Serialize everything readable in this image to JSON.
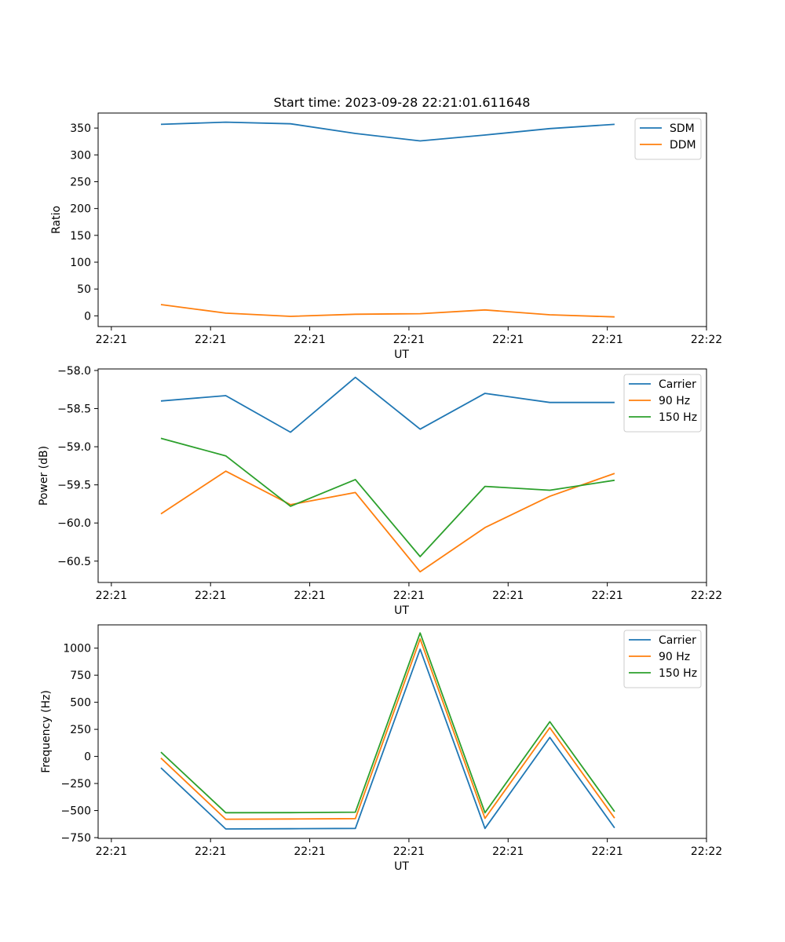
{
  "figure": {
    "title": "Start time: 2023-09-28 22:21:01.611648"
  },
  "chart_data": [
    {
      "type": "line",
      "name": "ratio",
      "title": "Start time: 2023-09-28 22:21:01.611648",
      "xlabel": "UT",
      "ylabel": "Ratio",
      "xlim": [
        -0.2,
        9.0
      ],
      "ylim": [
        -20,
        378
      ],
      "x_ticks": [
        0,
        1.5,
        3,
        4.5,
        6,
        7.5,
        9
      ],
      "x_tick_labels": [
        "22:21",
        "22:21",
        "22:21",
        "22:21",
        "22:21",
        "22:21",
        "22:22"
      ],
      "y_ticks": [
        0,
        50,
        100,
        150,
        200,
        250,
        300,
        350
      ],
      "y_tick_labels": [
        "0",
        "50",
        "100",
        "150",
        "200",
        "250",
        "300",
        "350"
      ],
      "legend_position": "upper-right",
      "x": [
        0.75,
        1.73,
        2.71,
        3.69,
        4.67,
        5.65,
        6.63,
        7.61
      ],
      "series": [
        {
          "name": "SDM",
          "color": "#1f77b4",
          "values": [
            357,
            361,
            358,
            340,
            326,
            337,
            349,
            357
          ]
        },
        {
          "name": "DDM",
          "color": "#ff7f0e",
          "values": [
            21,
            5,
            -1,
            3,
            4,
            11,
            2,
            -2
          ]
        }
      ]
    },
    {
      "type": "line",
      "name": "power",
      "title": "",
      "xlabel": "UT",
      "ylabel": "Power (dB)",
      "xlim": [
        -0.2,
        9.0
      ],
      "ylim": [
        -60.78,
        -57.98
      ],
      "x_ticks": [
        0,
        1.5,
        3,
        4.5,
        6,
        7.5,
        9
      ],
      "x_tick_labels": [
        "22:21",
        "22:21",
        "22:21",
        "22:21",
        "22:21",
        "22:21",
        "22:22"
      ],
      "y_ticks": [
        -60.5,
        -60.0,
        -59.5,
        -59.0,
        -58.5,
        -58.0
      ],
      "y_tick_labels": [
        "−60.5",
        "−60.0",
        "−59.5",
        "−59.0",
        "−58.5",
        "−58.0"
      ],
      "legend_position": "upper-right",
      "x": [
        0.75,
        1.73,
        2.71,
        3.69,
        4.67,
        5.65,
        6.63,
        7.61
      ],
      "series": [
        {
          "name": "Carrier",
          "color": "#1f77b4",
          "values": [
            -58.4,
            -58.33,
            -58.81,
            -58.09,
            -58.77,
            -58.3,
            -58.42,
            -58.42
          ]
        },
        {
          "name": "90 Hz",
          "color": "#ff7f0e",
          "values": [
            -59.88,
            -59.32,
            -59.76,
            -59.6,
            -60.64,
            -60.06,
            -59.65,
            -59.35
          ]
        },
        {
          "name": "150 Hz",
          "color": "#2ca02c",
          "values": [
            -58.89,
            -59.12,
            -59.78,
            -59.43,
            -60.44,
            -59.52,
            -59.57,
            -59.44
          ]
        }
      ]
    },
    {
      "type": "line",
      "name": "frequency",
      "title": "",
      "xlabel": "UT",
      "ylabel": "Frequency (Hz)",
      "xlim": [
        -0.2,
        9.0
      ],
      "ylim": [
        -757,
        1215
      ],
      "x_ticks": [
        0,
        1.5,
        3,
        4.5,
        6,
        7.5,
        9
      ],
      "x_tick_labels": [
        "22:21",
        "22:21",
        "22:21",
        "22:21",
        "22:21",
        "22:21",
        "22:22"
      ],
      "y_ticks": [
        -750,
        -500,
        -250,
        0,
        250,
        500,
        750,
        1000
      ],
      "y_tick_labels": [
        "−750",
        "−500",
        "−250",
        "0",
        "250",
        "500",
        "750",
        "1000"
      ],
      "legend_position": "upper-right",
      "x": [
        0.75,
        1.73,
        2.71,
        3.69,
        4.67,
        5.65,
        6.63,
        7.61
      ],
      "series": [
        {
          "name": "Carrier",
          "color": "#1f77b4",
          "values": [
            -105,
            -670,
            -668,
            -665,
            990,
            -665,
            175,
            -660
          ]
        },
        {
          "name": "90 Hz",
          "color": "#ff7f0e",
          "values": [
            -15,
            -580,
            -578,
            -574,
            1085,
            -572,
            265,
            -570
          ]
        },
        {
          "name": "150 Hz",
          "color": "#2ca02c",
          "values": [
            40,
            -520,
            -519,
            -515,
            1140,
            -520,
            320,
            -510
          ]
        }
      ]
    }
  ]
}
